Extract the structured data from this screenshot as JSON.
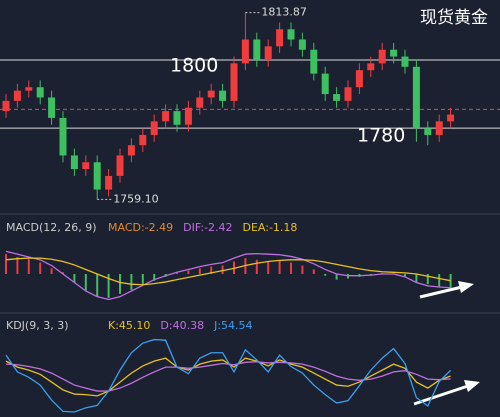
{
  "chart_data": [
    {
      "type": "candlestick",
      "title": "现货黄金",
      "open": [
        1785,
        1788,
        1791,
        1792,
        1789,
        1783,
        1772,
        1768,
        1770,
        1762,
        1766,
        1772,
        1775,
        1778,
        1782,
        1785,
        1781,
        1786,
        1789,
        1791,
        1788,
        1799,
        1806,
        1800,
        1804,
        1809,
        1806,
        1803,
        1796,
        1790,
        1788,
        1792,
        1797,
        1799,
        1803,
        1801,
        1798,
        1780,
        1778,
        1782
      ],
      "high": [
        1790,
        1793,
        1794,
        1794,
        1791,
        1785,
        1774,
        1772,
        1772,
        1768,
        1774,
        1777,
        1780,
        1784,
        1787,
        1787,
        1788,
        1791,
        1793,
        1793,
        1801,
        1813.87,
        1808,
        1806,
        1811,
        1811,
        1808,
        1805,
        1798,
        1792,
        1794,
        1799,
        1801,
        1805,
        1805,
        1803,
        1800,
        1782,
        1784,
        1786
      ],
      "low": [
        1783,
        1786,
        1789,
        1787,
        1781,
        1770,
        1766,
        1766,
        1759.1,
        1760,
        1764,
        1770,
        1773,
        1776,
        1780,
        1779,
        1779,
        1784,
        1787,
        1786,
        1786,
        1797,
        1798,
        1798,
        1802,
        1804,
        1801,
        1794,
        1788,
        1786,
        1786,
        1790,
        1795,
        1797,
        1799,
        1796,
        1776,
        1775,
        1776,
        1780
      ],
      "close": [
        1788,
        1791,
        1792,
        1789,
        1783,
        1772,
        1768,
        1770,
        1762,
        1766,
        1772,
        1775,
        1778,
        1782,
        1785,
        1781,
        1786,
        1789,
        1791,
        1788,
        1799,
        1806,
        1800,
        1804,
        1809,
        1806,
        1803,
        1796,
        1790,
        1788,
        1792,
        1797,
        1799,
        1803,
        1801,
        1798,
        1780,
        1778,
        1782,
        1784
      ],
      "up_color": "#f03c3c",
      "down_color": "#3cc060",
      "ylim": [
        1756,
        1817
      ],
      "hlines": [
        1800,
        1780
      ],
      "current_price": 1785.5,
      "annotations": [
        {
          "value": 1813.87,
          "label": "1813.87"
        },
        {
          "value": 1759.1,
          "label": "1759.10"
        }
      ]
    },
    {
      "type": "macd",
      "title": "MACD(12, 26, 9)",
      "ylim": [
        -6,
        6
      ],
      "series": [
        {
          "name": "MACD:-2.49",
          "color": "#e08a30",
          "values": [
            3.5,
            3,
            2.6,
            2,
            1,
            0.3,
            -1.5,
            -3,
            -4,
            -4.2,
            -3.5,
            -2.8,
            -2,
            -1.2,
            -0.5,
            0.2,
            0.6,
            1,
            1.3,
            1.5,
            2.2,
            2.8,
            2.5,
            2.3,
            2.4,
            2,
            1.5,
            0.8,
            -0.3,
            -1,
            -0.8,
            -0.5,
            -0.3,
            0.2,
            0.1,
            -0.4,
            -1.5,
            -1.8,
            -2.2,
            -2.49
          ]
        },
        {
          "name": "DIF:-2.42",
          "color": "#c070e0",
          "values": [
            4,
            3.5,
            3,
            2.5,
            1.5,
            0,
            -1.5,
            -3,
            -4,
            -4.5,
            -4,
            -3,
            -2,
            -1,
            -0.3,
            0.3,
            0.8,
            1.3,
            1.7,
            2,
            2.8,
            3.5,
            3.6,
            3.5,
            3.4,
            3.1,
            2.6,
            1.8,
            0.8,
            0,
            -0.3,
            -0.3,
            -0.2,
            0,
            0,
            -0.5,
            -1.5,
            -2.1,
            -2.3,
            -2.42
          ]
        },
        {
          "name": "DEA:-1.18",
          "color": "#e8c020",
          "values": [
            2.5,
            2.7,
            2.8,
            2.8,
            2.6,
            2.2,
            1.6,
            0.8,
            0,
            -0.8,
            -1.5,
            -1.8,
            -1.9,
            -1.7,
            -1.4,
            -1,
            -0.6,
            -0.2,
            0.2,
            0.6,
            1,
            1.5,
            1.9,
            2.2,
            2.4,
            2.5,
            2.5,
            2.4,
            2.1,
            1.7,
            1.3,
            0.9,
            0.6,
            0.4,
            0.3,
            0.2,
            0,
            -0.4,
            -0.8,
            -1.18
          ]
        }
      ]
    },
    {
      "type": "kdj",
      "title": "KDJ(9, 3, 3)",
      "ylim": [
        -20,
        112
      ],
      "series": [
        {
          "name": "K:45.10",
          "color": "#e8c020",
          "values": [
            70,
            60,
            55,
            48,
            35,
            22,
            15,
            14,
            12,
            20,
            35,
            50,
            62,
            70,
            75,
            60,
            55,
            65,
            70,
            72,
            60,
            75,
            70,
            62,
            72,
            65,
            60,
            50,
            40,
            30,
            28,
            35,
            45,
            55,
            65,
            58,
            35,
            25,
            38,
            45.1
          ]
        },
        {
          "name": "D:40.38",
          "color": "#c070e0",
          "values": [
            65,
            64,
            61,
            57,
            50,
            40,
            30,
            25,
            20,
            20,
            25,
            33,
            43,
            52,
            60,
            60,
            58,
            60,
            63,
            66,
            64,
            68,
            69,
            67,
            68,
            67,
            65,
            60,
            53,
            45,
            40,
            38,
            40,
            45,
            52,
            54,
            48,
            40,
            39,
            40.38
          ]
        },
        {
          "name": "J:54.54",
          "color": "#3aa0f0",
          "values": [
            80,
            52,
            43,
            30,
            5,
            -14,
            -15,
            -8,
            -4,
            20,
            55,
            84,
            100,
            106,
            105,
            60,
            49,
            75,
            84,
            84,
            52,
            89,
            72,
            52,
            80,
            61,
            50,
            30,
            14,
            0,
            4,
            29,
            55,
            75,
            91,
            66,
            9,
            -5,
            36,
            54.54
          ]
        }
      ]
    }
  ]
}
